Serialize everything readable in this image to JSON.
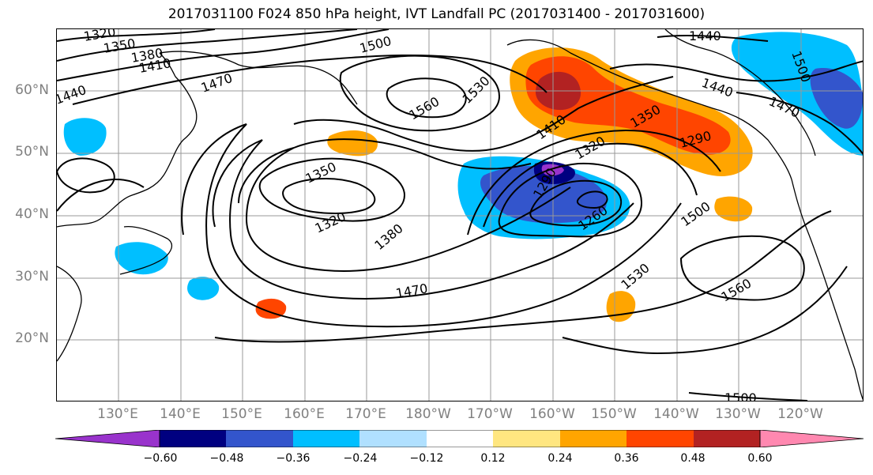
{
  "title": "2017031100 F024 850 hPa height, IVT Landfall PC (2017031400 - 2017031600)",
  "map": {
    "projection": "cylindrical",
    "lon_range": [
      "120°E",
      "110°W"
    ],
    "lat_range": [
      "10°N",
      "70°N"
    ],
    "gridlines": true
  },
  "lat_labels": [
    "60°N",
    "50°N",
    "40°N",
    "30°N",
    "20°N"
  ],
  "lon_labels": [
    "130°E",
    "140°E",
    "150°E",
    "160°E",
    "170°E",
    "180°W",
    "170°W",
    "160°W",
    "150°W",
    "140°W",
    "130°W",
    "120°W"
  ],
  "contour_labels": [
    "1320",
    "1350",
    "1380",
    "1410",
    "1440",
    "1500",
    "1470",
    "1560",
    "1530",
    "1410",
    "1350",
    "1320",
    "1290",
    "1260",
    "1290",
    "1350",
    "1320",
    "1380",
    "1470",
    "1500",
    "1530",
    "1560",
    "1440",
    "1470",
    "1500",
    "1440",
    "1500"
  ],
  "colorbar": {
    "ticks": [
      "−0.60",
      "−0.48",
      "−0.36",
      "−0.24",
      "−0.12",
      "0.12",
      "0.24",
      "0.36",
      "0.48",
      "0.60"
    ],
    "colors": [
      "#9933cc",
      "#000080",
      "#3355cc",
      "#00bfff",
      "#b0e0ff",
      "#ffffff",
      "#ffe680",
      "#ffa500",
      "#ff4500",
      "#b22222",
      "#ff88b0"
    ]
  }
}
